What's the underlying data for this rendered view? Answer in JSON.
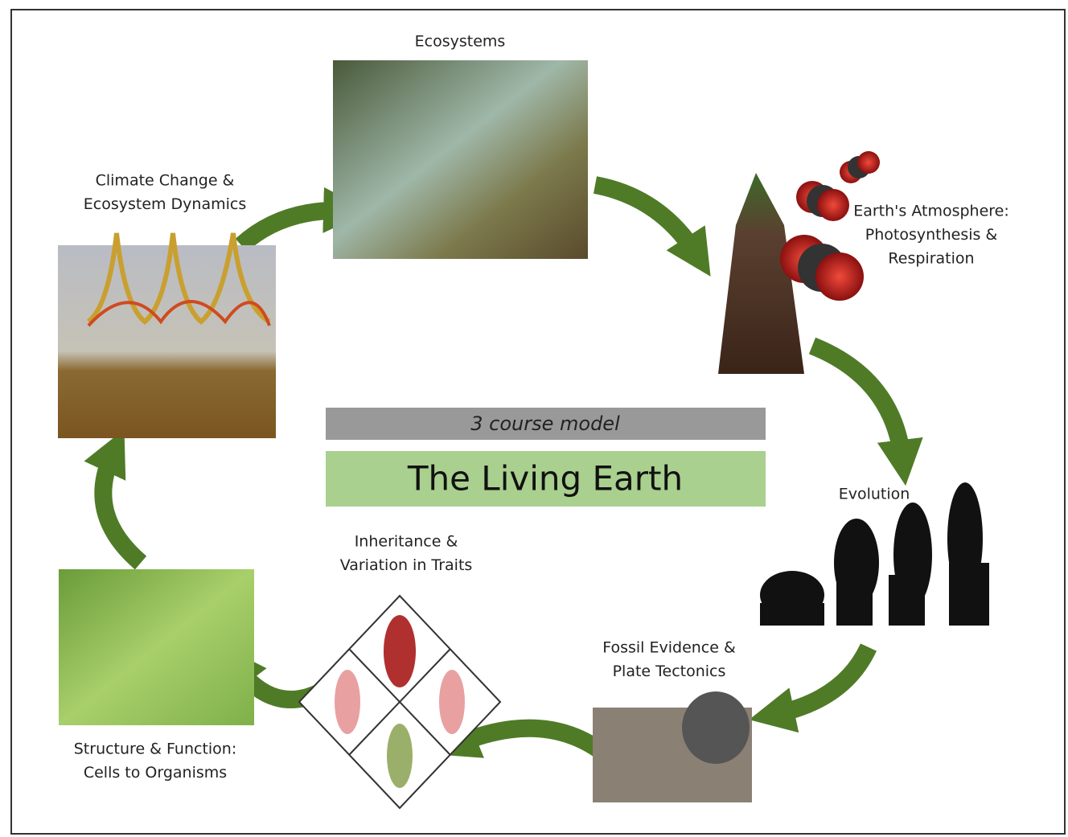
{
  "nodes": [
    {
      "label": [
        "Ecosystems"
      ]
    },
    {
      "label": [
        "Earth's Atmosphere:",
        "Photosynthesis &",
        "Respiration"
      ]
    },
    {
      "label": [
        "Evolution"
      ]
    },
    {
      "label": [
        "Fossil Evidence &",
        "Plate Tectonics"
      ]
    },
    {
      "label": [
        "Inheritance &",
        "Variation in Traits"
      ]
    },
    {
      "label": [
        "Structure & Function:",
        "Cells to Organisms"
      ]
    },
    {
      "label": [
        "Climate Change &",
        "Ecosystem Dynamics"
      ]
    }
  ],
  "center": {
    "subtitle": "3 course model",
    "title": "The Living Earth"
  }
}
